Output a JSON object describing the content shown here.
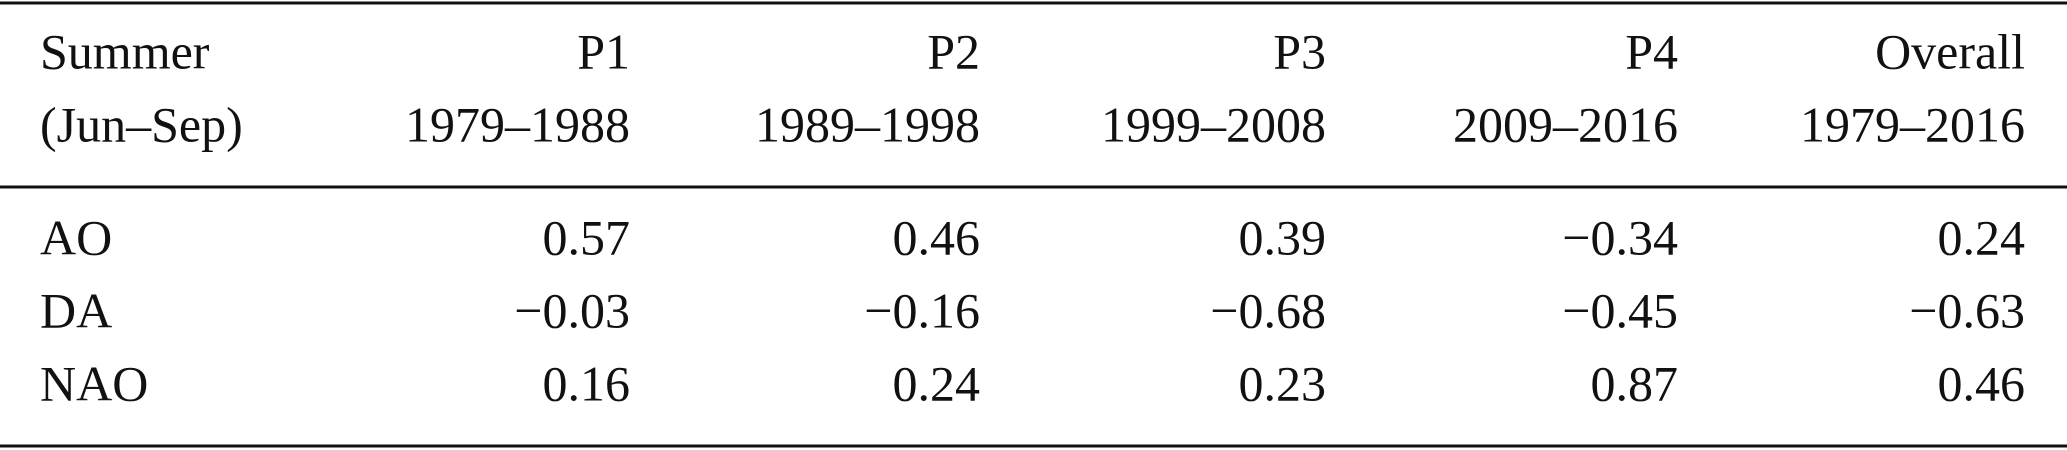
{
  "table": {
    "header": [
      [
        "Summer",
        "(Jun–Sep)"
      ],
      [
        "P1",
        "1979–1988"
      ],
      [
        "P2",
        "1989–1998"
      ],
      [
        "P3",
        "1999–2008"
      ],
      [
        "P4",
        "2009–2016"
      ],
      [
        "Overall",
        "1979–2016"
      ]
    ],
    "rows": [
      [
        "AO",
        "0.57",
        "0.46",
        "0.39",
        "−0.34",
        "0.24"
      ],
      [
        "DA",
        "−0.03",
        "−0.16",
        "−0.68",
        "−0.45",
        "−0.63"
      ],
      [
        "NAO",
        "0.16",
        "0.24",
        "0.23",
        "0.87",
        "0.46"
      ]
    ]
  }
}
